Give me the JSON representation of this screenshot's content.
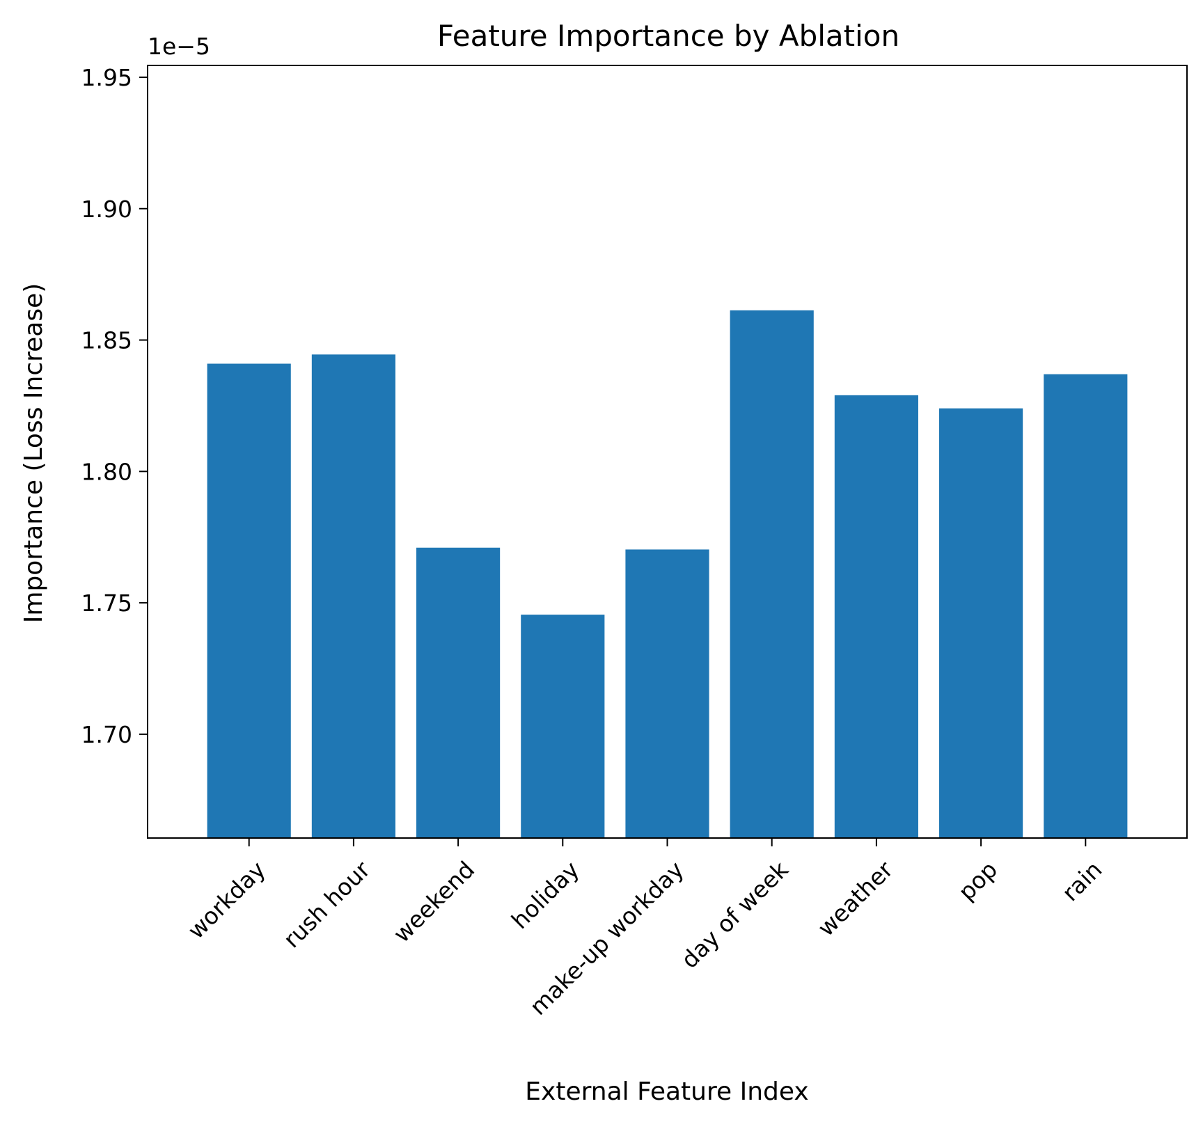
{
  "chart_data": {
    "type": "bar",
    "title": "Feature Importance by Ablation",
    "xlabel": "External Feature Index",
    "ylabel": "Importance (Loss Increase)",
    "y_offset_label": "1e−5",
    "categories": [
      "workday",
      "rush hour",
      "weekend",
      "holiday",
      "make-up workday",
      "day of week",
      "weather",
      "pop",
      "rain"
    ],
    "values": [
      1.841,
      1.8445,
      1.771,
      1.7455,
      1.7703,
      1.8613,
      1.829,
      1.824,
      1.837
    ],
    "ylim": [
      1.6605,
      1.9545
    ],
    "yticks": [
      1.7,
      1.75,
      1.8,
      1.85,
      1.9,
      1.95
    ],
    "ytick_labels": [
      "1.70",
      "1.75",
      "1.80",
      "1.85",
      "1.90",
      "1.95"
    ],
    "bar_color": "#1f77b4",
    "grid": false,
    "legend": "none"
  }
}
